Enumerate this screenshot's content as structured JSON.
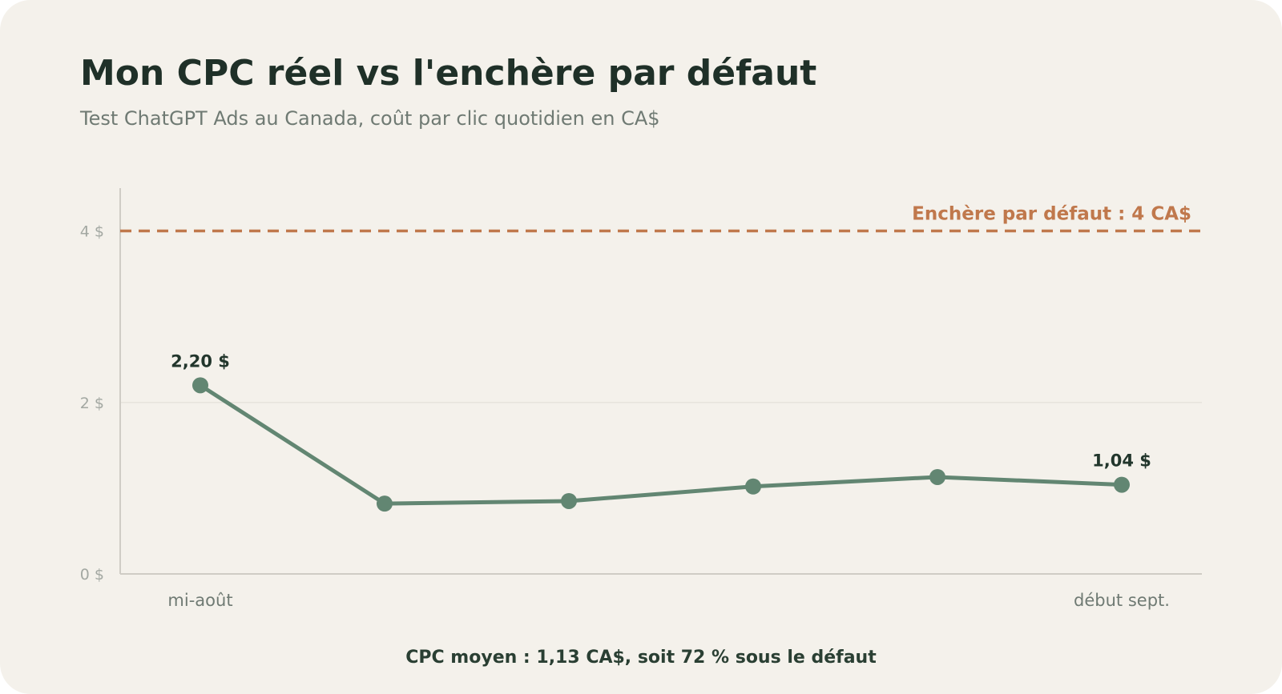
{
  "colors": {
    "background": "#f4f1eb",
    "title": "#1f3028",
    "series_line": "#628672",
    "reference_line": "#c0784c",
    "axis": "#cfccc5",
    "gridline": "#e6e3dc"
  },
  "chart_data": {
    "type": "line",
    "title": "Mon CPC réel vs l'enchère par défaut",
    "subtitle": "Test ChatGPT Ads au Canada, coût par clic quotidien en CA$",
    "xlabel": "",
    "ylabel": "",
    "x_tick_labels": [
      "mi-août",
      "",
      "",
      "",
      "",
      "début sept."
    ],
    "y_ticks": [
      0,
      2,
      4
    ],
    "y_tick_labels": [
      "0 $",
      "2 $",
      "4 $"
    ],
    "ylim": [
      0,
      4.5
    ],
    "grid": "horizontal, at 2 $",
    "series": [
      {
        "values": [
          2.2,
          0.82,
          0.85,
          1.02,
          1.13,
          1.04
        ]
      }
    ],
    "data_labels": [
      {
        "index": 0,
        "text": "2,20 $"
      },
      {
        "index": 5,
        "text": "1,04 $"
      }
    ],
    "reference_line": {
      "value": 4,
      "style": "dashed",
      "label": "Enchère par défaut : 4 CA$"
    },
    "annotation": "CPC moyen : 1,13 CA$, soit 72 % sous le défaut"
  }
}
